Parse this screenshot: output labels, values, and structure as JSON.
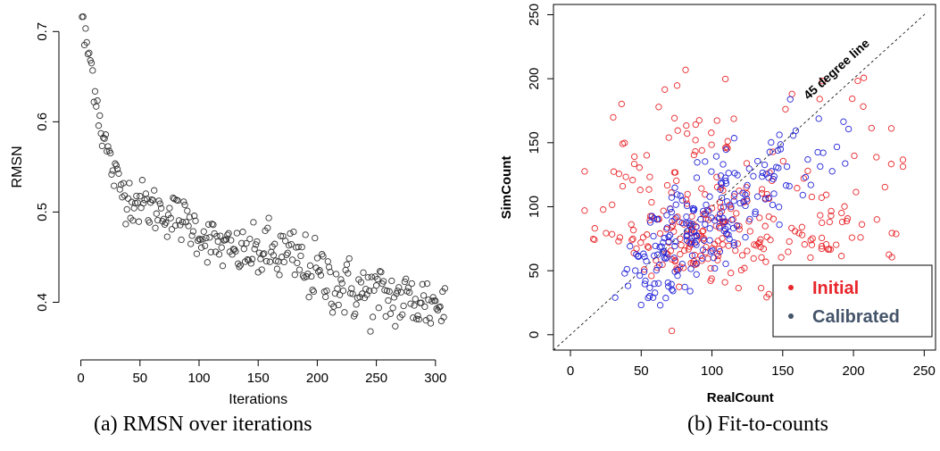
{
  "captions": {
    "left": "(a)  RMSN over iterations",
    "right": "(b) Fit-to-counts"
  },
  "chart_data": [
    {
      "type": "scatter",
      "xlabel": "Iterations",
      "ylabel": "RMSN",
      "xlim": [
        -8,
        316
      ],
      "ylim": [
        0.35,
        0.73
      ],
      "xticks": [
        "0",
        "50",
        "100",
        "150",
        "200",
        "250",
        "300"
      ],
      "yticks": [
        "0.4",
        "0.5",
        "0.6",
        "0.7"
      ],
      "grid": false,
      "marker": "open-circle",
      "color": "#333333",
      "trend": [
        [
          1,
          0.72
        ],
        [
          3,
          0.69
        ],
        [
          6,
          0.68
        ],
        [
          9,
          0.66
        ],
        [
          12,
          0.64
        ],
        [
          15,
          0.61
        ],
        [
          18,
          0.59
        ],
        [
          22,
          0.57
        ],
        [
          26,
          0.55
        ],
        [
          30,
          0.535
        ],
        [
          35,
          0.525
        ],
        [
          40,
          0.518
        ],
        [
          50,
          0.51
        ],
        [
          60,
          0.505
        ],
        [
          70,
          0.5
        ],
        [
          80,
          0.495
        ],
        [
          90,
          0.488
        ],
        [
          100,
          0.478
        ],
        [
          110,
          0.468
        ],
        [
          120,
          0.46
        ],
        [
          130,
          0.455
        ],
        [
          140,
          0.455
        ],
        [
          150,
          0.457
        ],
        [
          160,
          0.455
        ],
        [
          170,
          0.452
        ],
        [
          180,
          0.448
        ],
        [
          190,
          0.44
        ],
        [
          200,
          0.43
        ],
        [
          210,
          0.425
        ],
        [
          220,
          0.418
        ],
        [
          230,
          0.413
        ],
        [
          240,
          0.41
        ],
        [
          250,
          0.408
        ],
        [
          260,
          0.405
        ],
        [
          270,
          0.403
        ],
        [
          280,
          0.402
        ],
        [
          290,
          0.4
        ],
        [
          300,
          0.398
        ],
        [
          308,
          0.397
        ]
      ]
    },
    {
      "type": "scatter",
      "xlabel": "RealCount",
      "ylabel": "SimCount",
      "xlim": [
        -12,
        258
      ],
      "ylim": [
        -12,
        258
      ],
      "xticks": [
        "0",
        "50",
        "100",
        "150",
        "200",
        "250"
      ],
      "yticks": [
        "0",
        "50",
        "100",
        "150",
        "200",
        "250"
      ],
      "grid": false,
      "reference_line": {
        "label": "45 degree line",
        "slope": 1,
        "intercept": 0
      },
      "series": [
        {
          "name": "Initial",
          "color": "#e8262b"
        },
        {
          "name": "Calibrated",
          "color": "#2424d8"
        }
      ],
      "legend": {
        "placement": "bottom-right",
        "text_colors": [
          "#e8262b",
          "#44546a"
        ]
      }
    }
  ]
}
